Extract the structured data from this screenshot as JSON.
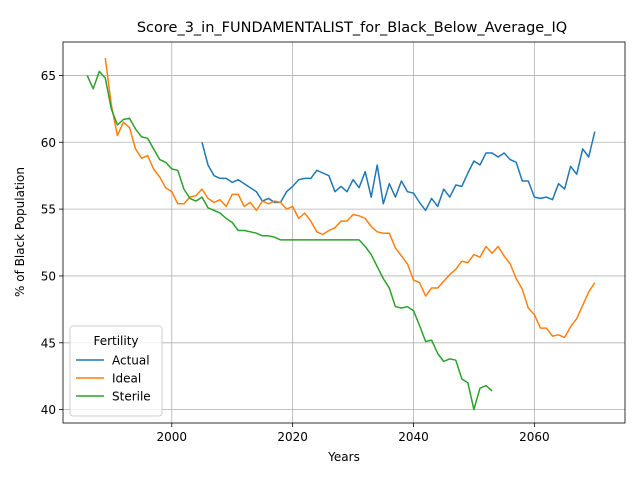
{
  "chart_data": {
    "type": "line",
    "title": "Score_3_in_FUNDAMENTALIST_for_Black_Below_Average_IQ",
    "xlabel": "Years",
    "ylabel": "% of Black Population",
    "xlim": [
      1982,
      2075
    ],
    "ylim": [
      39,
      67.5
    ],
    "xticks": [
      2000,
      2020,
      2040,
      2060
    ],
    "yticks": [
      40,
      45,
      50,
      55,
      60,
      65
    ],
    "grid": true,
    "legend": {
      "title": "Fertility",
      "placement": "lower-left"
    },
    "series": [
      {
        "name": "Actual",
        "color": "#1f77b4",
        "x": [
          2005,
          2006,
          2007,
          2008,
          2009,
          2010,
          2011,
          2012,
          2013,
          2014,
          2015,
          2016,
          2017,
          2018,
          2019,
          2020,
          2021,
          2022,
          2023,
          2024,
          2025,
          2026,
          2027,
          2028,
          2029,
          2030,
          2031,
          2032,
          2033,
          2034,
          2035,
          2036,
          2037,
          2038,
          2039,
          2040,
          2041,
          2042,
          2043,
          2044,
          2045,
          2046,
          2047,
          2048,
          2049,
          2050,
          2051,
          2052,
          2053,
          2054,
          2055,
          2056,
          2057,
          2058,
          2059,
          2060,
          2061,
          2062,
          2063,
          2064,
          2065,
          2066,
          2067,
          2068,
          2069,
          2070
        ],
        "y": [
          60.0,
          58.3,
          57.5,
          57.3,
          57.3,
          57.0,
          57.2,
          56.9,
          56.6,
          56.3,
          55.6,
          55.8,
          55.5,
          55.5,
          56.3,
          56.7,
          57.2,
          57.3,
          57.3,
          57.9,
          57.7,
          57.5,
          56.3,
          56.7,
          56.3,
          57.2,
          56.6,
          57.8,
          55.9,
          58.3,
          55.4,
          56.9,
          55.9,
          57.1,
          56.3,
          56.2,
          55.5,
          54.9,
          55.8,
          55.2,
          56.5,
          55.9,
          56.8,
          56.7,
          57.7,
          58.6,
          58.3,
          59.2,
          59.2,
          58.9,
          59.2,
          58.7,
          58.5,
          57.1,
          57.1,
          55.9,
          55.8,
          55.9,
          55.7,
          56.9,
          56.5,
          58.2,
          57.6,
          59.5,
          58.9,
          60.8
        ]
      },
      {
        "name": "Ideal",
        "color": "#ff7f0e",
        "x": [
          1989,
          1990,
          1991,
          1992,
          1993,
          1994,
          1995,
          1996,
          1997,
          1998,
          1999,
          2000,
          2001,
          2002,
          2003,
          2004,
          2005,
          2006,
          2007,
          2008,
          2009,
          2010,
          2011,
          2012,
          2013,
          2014,
          2015,
          2016,
          2017,
          2018,
          2019,
          2020,
          2021,
          2022,
          2023,
          2024,
          2025,
          2026,
          2027,
          2028,
          2029,
          2030,
          2031,
          2032,
          2033,
          2034,
          2035,
          2036,
          2037,
          2038,
          2039,
          2040,
          2041,
          2042,
          2043,
          2044,
          2045,
          2046,
          2047,
          2048,
          2049,
          2050,
          2051,
          2052,
          2053,
          2054,
          2055,
          2056,
          2057,
          2058,
          2059,
          2060,
          2061,
          2062,
          2063,
          2064,
          2065,
          2066,
          2067,
          2068,
          2069,
          2070
        ],
        "y": [
          66.3,
          62.8,
          60.5,
          61.5,
          61.1,
          59.5,
          58.8,
          59.0,
          58.0,
          57.4,
          56.6,
          56.3,
          55.4,
          55.4,
          55.9,
          56.0,
          56.5,
          55.8,
          55.5,
          55.7,
          55.2,
          56.1,
          56.1,
          55.2,
          55.5,
          54.9,
          55.6,
          55.4,
          55.6,
          55.5,
          55.0,
          55.2,
          54.3,
          54.7,
          54.1,
          53.3,
          53.1,
          53.4,
          53.6,
          54.1,
          54.1,
          54.6,
          54.5,
          54.3,
          53.7,
          53.3,
          53.2,
          53.2,
          52.1,
          51.5,
          50.9,
          49.7,
          49.5,
          48.5,
          49.1,
          49.1,
          49.6,
          50.1,
          50.5,
          51.1,
          51.0,
          51.6,
          51.4,
          52.2,
          51.7,
          52.2,
          51.5,
          50.9,
          49.8,
          49.0,
          47.6,
          47.1,
          46.1,
          46.1,
          45.5,
          45.6,
          45.4,
          46.2,
          46.8,
          47.8,
          48.8,
          49.5
        ]
      },
      {
        "name": "Sterile",
        "color": "#2ca02c",
        "x": [
          1986,
          1987,
          1988,
          1989,
          1990,
          1991,
          1992,
          1993,
          1994,
          1995,
          1996,
          1997,
          1998,
          1999,
          2000,
          2001,
          2002,
          2003,
          2004,
          2005,
          2006,
          2007,
          2008,
          2009,
          2010,
          2011,
          2012,
          2013,
          2014,
          2015,
          2016,
          2017,
          2018,
          2019,
          2020,
          2021,
          2022,
          2023,
          2024,
          2025,
          2026,
          2027,
          2028,
          2029,
          2030,
          2031,
          2032,
          2033,
          2034,
          2035,
          2036,
          2037,
          2038,
          2039,
          2040,
          2041,
          2042,
          2043,
          2044,
          2045,
          2046,
          2047,
          2048,
          2049,
          2050,
          2051,
          2052,
          2053
        ],
        "y": [
          65.0,
          64.0,
          65.3,
          64.8,
          62.5,
          61.3,
          61.7,
          61.8,
          61.0,
          60.4,
          60.3,
          59.5,
          58.7,
          58.5,
          58.0,
          57.9,
          56.5,
          55.8,
          55.6,
          55.9,
          55.1,
          54.9,
          54.7,
          54.3,
          54.0,
          53.4,
          53.4,
          53.3,
          53.2,
          53.0,
          53.0,
          52.9,
          52.7,
          52.7,
          52.7,
          52.7,
          52.7,
          52.7,
          52.7,
          52.7,
          52.7,
          52.7,
          52.7,
          52.7,
          52.7,
          52.7,
          52.2,
          51.6,
          50.7,
          49.8,
          49.1,
          47.7,
          47.6,
          47.7,
          47.4,
          46.3,
          45.1,
          45.2,
          44.2,
          43.6,
          43.8,
          43.7,
          42.3,
          42.0,
          40.0,
          41.6,
          41.8,
          41.4
        ]
      }
    ]
  }
}
